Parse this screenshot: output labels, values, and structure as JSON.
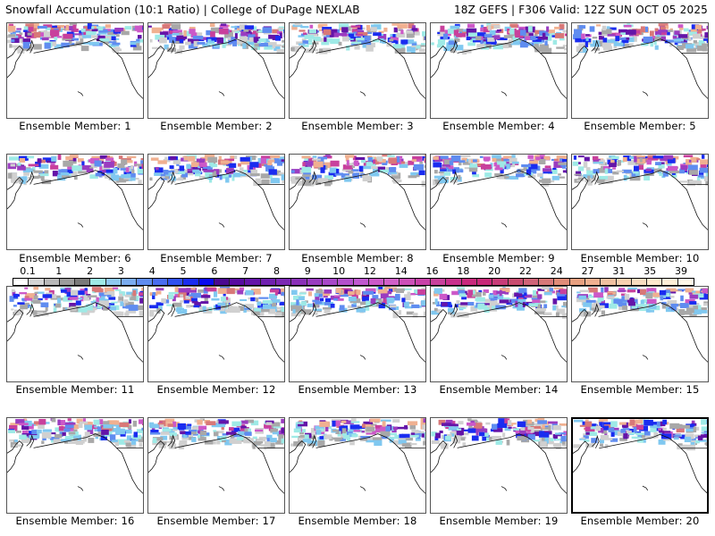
{
  "header": {
    "title_left": "Snowfall Accumulation (10:1 Ratio) | College of DuPage NEXLAB",
    "title_right": "18Z GEFS | F306 Valid: 12Z SUN OCT 05 2025"
  },
  "panels": [
    {
      "label": "Ensemble Member: 1"
    },
    {
      "label": "Ensemble Member: 2"
    },
    {
      "label": "Ensemble Member: 3"
    },
    {
      "label": "Ensemble Member: 4"
    },
    {
      "label": "Ensemble Member: 5"
    },
    {
      "label": "Ensemble Member: 6"
    },
    {
      "label": "Ensemble Member: 7"
    },
    {
      "label": "Ensemble Member: 8"
    },
    {
      "label": "Ensemble Member: 9"
    },
    {
      "label": "Ensemble Member: 10"
    },
    {
      "label": "Ensemble Member: 11"
    },
    {
      "label": "Ensemble Member: 12"
    },
    {
      "label": "Ensemble Member: 13"
    },
    {
      "label": "Ensemble Member: 14"
    },
    {
      "label": "Ensemble Member: 15"
    },
    {
      "label": "Ensemble Member: 16"
    },
    {
      "label": "Ensemble Member: 17"
    },
    {
      "label": "Ensemble Member: 18"
    },
    {
      "label": "Ensemble Member: 19"
    },
    {
      "label": "Ensemble Member: 20"
    }
  ],
  "colorbar": {
    "tick_labels": [
      "0.1",
      "1",
      "2",
      "3",
      "4",
      "5",
      "6",
      "7",
      "8",
      "9",
      "10",
      "12",
      "14",
      "16",
      "18",
      "20",
      "22",
      "24",
      "27",
      "31",
      "35",
      "39"
    ],
    "colors": [
      "#ffffff",
      "#d4d4d4",
      "#b8b8b8",
      "#9c9c9c",
      "#7a7a7a",
      "#9eeae6",
      "#8ec8f0",
      "#7aacf0",
      "#5f8cf0",
      "#4a6cf0",
      "#3050f0",
      "#1a2cf0",
      "#0a0af0",
      "#4a0890",
      "#580ca0",
      "#6414a8",
      "#7020b0",
      "#7c28b4",
      "#8a30b8",
      "#9a3cc0",
      "#a848c8",
      "#b450cc",
      "#c058d0",
      "#cc58c8",
      "#d060c8",
      "#cc50b8",
      "#c840a8",
      "#c8409c",
      "#c8308c",
      "#c8287c",
      "#c82878",
      "#c83c78",
      "#c84c70",
      "#d06478",
      "#d87878",
      "#e08c78",
      "#e8a080",
      "#f0b090",
      "#f0c0a0",
      "#f8d0b0",
      "#f8dcc0",
      "#ffe8cc",
      "#fff0d8",
      "#fff8e8"
    ],
    "snow_palette": [
      "#d0d0d0",
      "#a8a8a8",
      "#80c8f0",
      "#9eeae6",
      "#5f8cf0",
      "#1a2cf0",
      "#6414a8",
      "#9a3cc0",
      "#cc58c8",
      "#c8409c",
      "#d87878",
      "#f0b090"
    ]
  }
}
